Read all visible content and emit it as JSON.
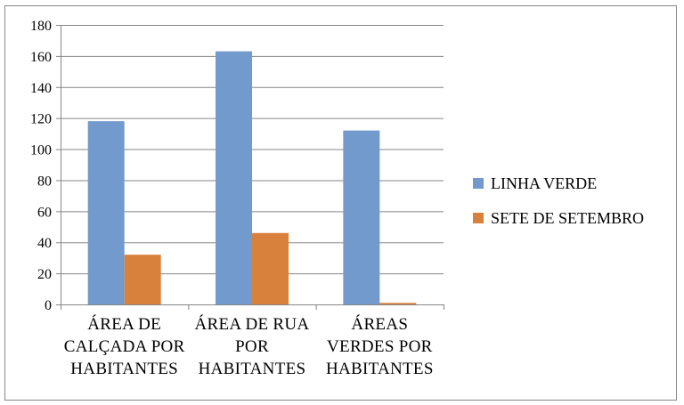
{
  "chart_data": {
    "type": "bar",
    "title": "",
    "xlabel": "",
    "ylabel": "",
    "ylim": [
      0,
      180
    ],
    "yticks": [
      0,
      20,
      40,
      60,
      80,
      100,
      120,
      140,
      160,
      180
    ],
    "grid": true,
    "legend_position": "right",
    "categories": [
      [
        "ÁREA DE",
        "CALÇADA POR",
        "HABITANTES"
      ],
      [
        "ÁREA DE RUA",
        "POR",
        "HABITANTES"
      ],
      [
        "ÁREAS",
        "VERDES POR",
        "HABITANTES"
      ]
    ],
    "series": [
      {
        "name": "LINHA VERDE",
        "color": "#729ACD",
        "values": [
          118,
          163,
          112
        ]
      },
      {
        "name": "SETE DE SETEMBRO",
        "color": "#D8813D",
        "values": [
          32,
          46,
          1
        ]
      }
    ]
  }
}
